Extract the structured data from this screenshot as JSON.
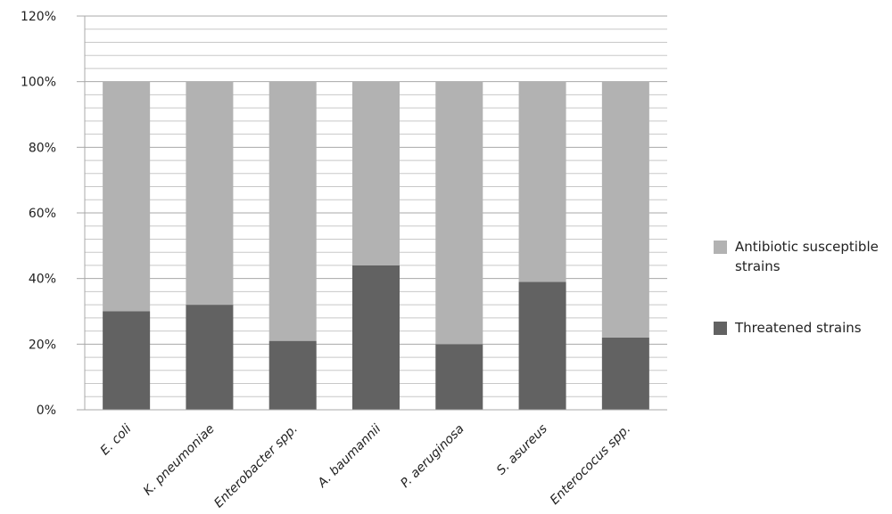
{
  "chart_data": {
    "type": "stacked_bar",
    "categories": [
      "E. coli",
      "K. pneumoniae",
      "Enterobacter spp.",
      "A. baumannii",
      "P. aeruginosa",
      "S. asureus",
      "Enterococus spp."
    ],
    "series": [
      {
        "name": "Threatened strains",
        "color": "#626262",
        "values": [
          30,
          32,
          21,
          44,
          20,
          39,
          22
        ]
      },
      {
        "name": "Antibiotic susceptible strains",
        "color": "#b2b2b2",
        "values": [
          70,
          68,
          79,
          56,
          80,
          61,
          78
        ]
      }
    ],
    "ylim": [
      0,
      120
    ],
    "yticks": [
      {
        "value": 0,
        "label": "0%"
      },
      {
        "value": 20,
        "label": "20%"
      },
      {
        "value": 40,
        "label": "40%"
      },
      {
        "value": 60,
        "label": "60%"
      },
      {
        "value": 80,
        "label": "80%"
      },
      {
        "value": 100,
        "label": "100%"
      },
      {
        "value": 120,
        "label": "120%"
      }
    ],
    "minor_yticks": [
      4,
      8,
      12,
      16,
      24,
      28,
      32,
      36,
      44,
      48,
      52,
      56,
      64,
      68,
      72,
      76,
      84,
      88,
      92,
      96,
      104,
      108,
      112,
      116
    ],
    "grid": true
  }
}
